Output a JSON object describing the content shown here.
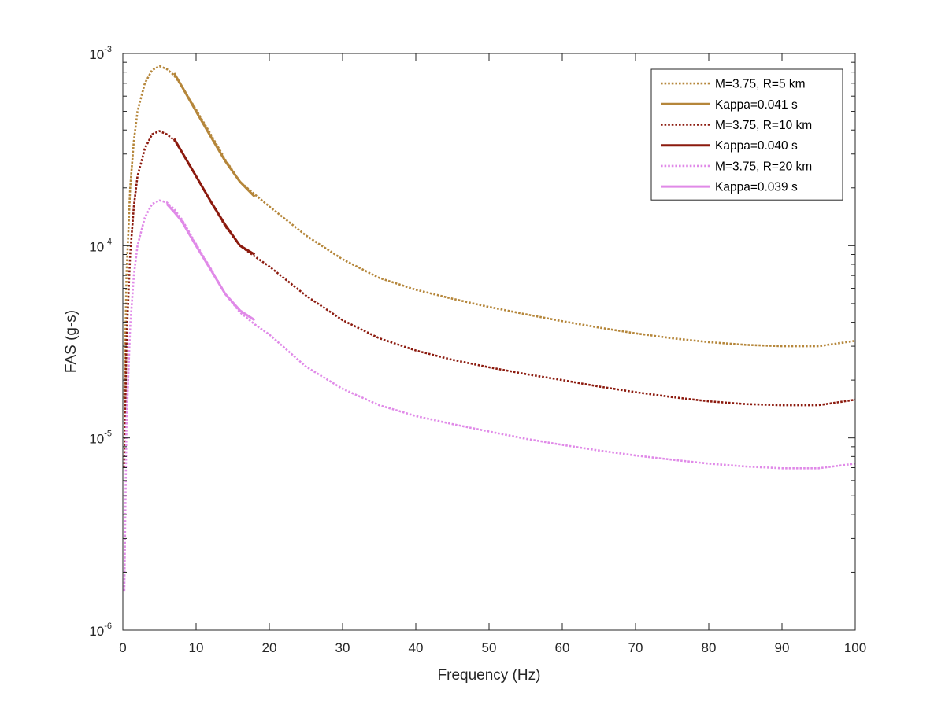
{
  "chart_data": {
    "type": "line",
    "xlabel": "Frequency (Hz)",
    "ylabel": "FAS (g-s)",
    "xlim": [
      0,
      100
    ],
    "ylim": [
      1e-06,
      0.001
    ],
    "yscale": "log",
    "x_ticks": [
      0,
      10,
      20,
      30,
      40,
      50,
      60,
      70,
      80,
      90,
      100
    ],
    "x_tick_labels": [
      "0",
      "10",
      "20",
      "30",
      "40",
      "50",
      "60",
      "70",
      "80",
      "90",
      "100"
    ],
    "y_ticks": [
      {
        "value": 0.001,
        "base": "10",
        "exp": "-3"
      },
      {
        "value": 0.0001,
        "base": "10",
        "exp": "-4"
      },
      {
        "value": 1e-05,
        "base": "10",
        "exp": "-5"
      },
      {
        "value": 1e-06,
        "base": "10",
        "exp": "-6"
      }
    ],
    "grid": false,
    "legend_position": "top-right",
    "series": [
      {
        "name": "M=3.75, R=5 km",
        "style": "dotted",
        "color": "#B5863A",
        "x": [
          0.2,
          0.5,
          1,
          1.5,
          2,
          3,
          4,
          5,
          6,
          7,
          8,
          10,
          12,
          14,
          16,
          18,
          20,
          25,
          30,
          35,
          40,
          45,
          50,
          55,
          60,
          65,
          70,
          75,
          80,
          85,
          90,
          95,
          100
        ],
        "y": [
          1.6e-05,
          7e-05,
          0.0002,
          0.00035,
          0.0005,
          0.0007,
          0.00082,
          0.00086,
          0.00083,
          0.00077,
          0.00068,
          0.00051,
          0.00038,
          0.00028,
          0.000215,
          0.000185,
          0.00016,
          0.000113,
          8.5e-05,
          6.8e-05,
          5.9e-05,
          5.3e-05,
          4.8e-05,
          4.4e-05,
          4.05e-05,
          3.75e-05,
          3.5e-05,
          3.3e-05,
          3.15e-05,
          3.05e-05,
          3e-05,
          3e-05,
          3.2e-05
        ]
      },
      {
        "name": "Kappa=0.041 s",
        "style": "solid",
        "color": "#B5863A",
        "x": [
          7,
          8,
          10,
          12,
          14,
          16,
          18
        ],
        "y": [
          0.00079,
          0.00068,
          0.0005,
          0.00037,
          0.000275,
          0.000215,
          0.00018
        ]
      },
      {
        "name": "M=3.75, R=10 km",
        "style": "dotted",
        "color": "#8C1A0E",
        "x": [
          0.2,
          0.5,
          1,
          1.5,
          2,
          3,
          4,
          5,
          6,
          7,
          8,
          10,
          12,
          14,
          16,
          18,
          20,
          25,
          30,
          35,
          40,
          45,
          50,
          55,
          60,
          65,
          70,
          75,
          80,
          85,
          90,
          95,
          100
        ],
        "y": [
          7e-06,
          3.2e-05,
          9e-05,
          0.00016,
          0.00023,
          0.00032,
          0.00038,
          0.000395,
          0.00038,
          0.000355,
          0.00031,
          0.00023,
          0.00017,
          0.000126,
          0.0001,
          8.8e-05,
          7.8e-05,
          5.5e-05,
          4.1e-05,
          3.3e-05,
          2.85e-05,
          2.55e-05,
          2.33e-05,
          2.15e-05,
          2e-05,
          1.85e-05,
          1.73e-05,
          1.63e-05,
          1.55e-05,
          1.5e-05,
          1.48e-05,
          1.48e-05,
          1.58e-05
        ]
      },
      {
        "name": "Kappa=0.040 s",
        "style": "solid",
        "color": "#8C1A0E",
        "x": [
          7,
          8,
          10,
          12,
          14,
          16,
          18
        ],
        "y": [
          0.00036,
          0.00031,
          0.00023,
          0.00017,
          0.000128,
          0.0001,
          9e-05
        ]
      },
      {
        "name": "M=3.75, R=20 km",
        "style": "dotted",
        "color": "#E08AE8",
        "x": [
          0.2,
          0.5,
          1,
          1.5,
          2,
          3,
          4,
          5,
          6,
          7,
          8,
          10,
          12,
          14,
          16,
          18,
          20,
          25,
          30,
          35,
          40,
          45,
          50,
          55,
          60,
          65,
          70,
          75,
          80,
          85,
          90,
          95,
          100
        ],
        "y": [
          1.6e-06,
          1.2e-05,
          3.8e-05,
          7e-05,
          0.0001,
          0.00014,
          0.000165,
          0.000172,
          0.000168,
          0.000155,
          0.000138,
          0.000102,
          7.6e-05,
          5.6e-05,
          4.5e-05,
          3.9e-05,
          3.45e-05,
          2.35e-05,
          1.8e-05,
          1.48e-05,
          1.3e-05,
          1.18e-05,
          1.08e-05,
          9.9e-06,
          9.2e-06,
          8.6e-06,
          8.1e-06,
          7.7e-06,
          7.35e-06,
          7.1e-06,
          6.95e-06,
          6.95e-06,
          7.35e-06
        ]
      },
      {
        "name": "Kappa=0.039 s",
        "style": "solid",
        "color": "#E08AE8",
        "x": [
          6,
          7,
          8,
          10,
          12,
          14,
          16,
          18
        ],
        "y": [
          0.000165,
          0.00015,
          0.000135,
          0.0001,
          7.5e-05,
          5.6e-05,
          4.6e-05,
          4.1e-05
        ]
      }
    ]
  }
}
